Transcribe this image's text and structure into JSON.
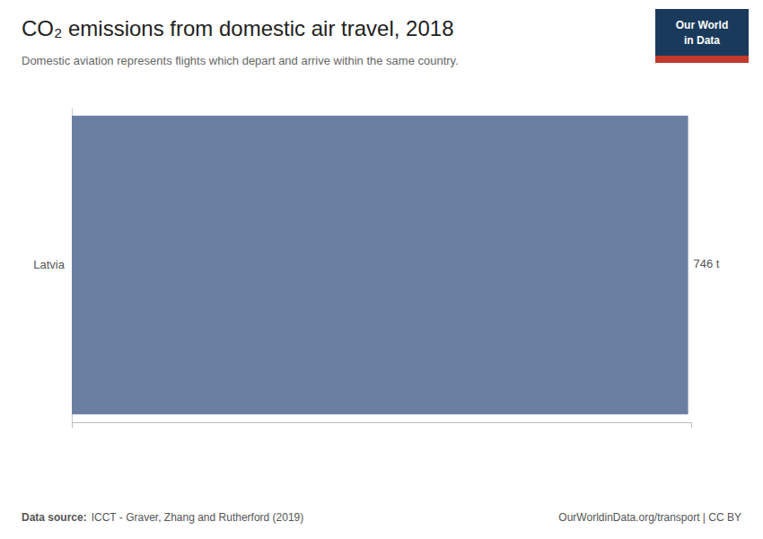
{
  "chart_data": {
    "type": "bar",
    "orientation": "horizontal",
    "title": "CO₂ emissions from domestic air travel, 2018",
    "subtitle": "Domestic aviation represents flights which depart and arrive within the same country.",
    "categories": [
      "Latvia"
    ],
    "values": [
      746
    ],
    "value_labels": [
      "746 t"
    ],
    "data_labels": true,
    "color": "#6b7fa3",
    "xlim": [
      0,
      749.73
    ],
    "tick_labels": "y",
    "annotations": [
      "Data source:",
      "ICCT - Graver, Zhang and Rutherford (2019)",
      "OurWorldinData.org/transport | CC BY",
      "Our World",
      "in Data"
    ]
  }
}
